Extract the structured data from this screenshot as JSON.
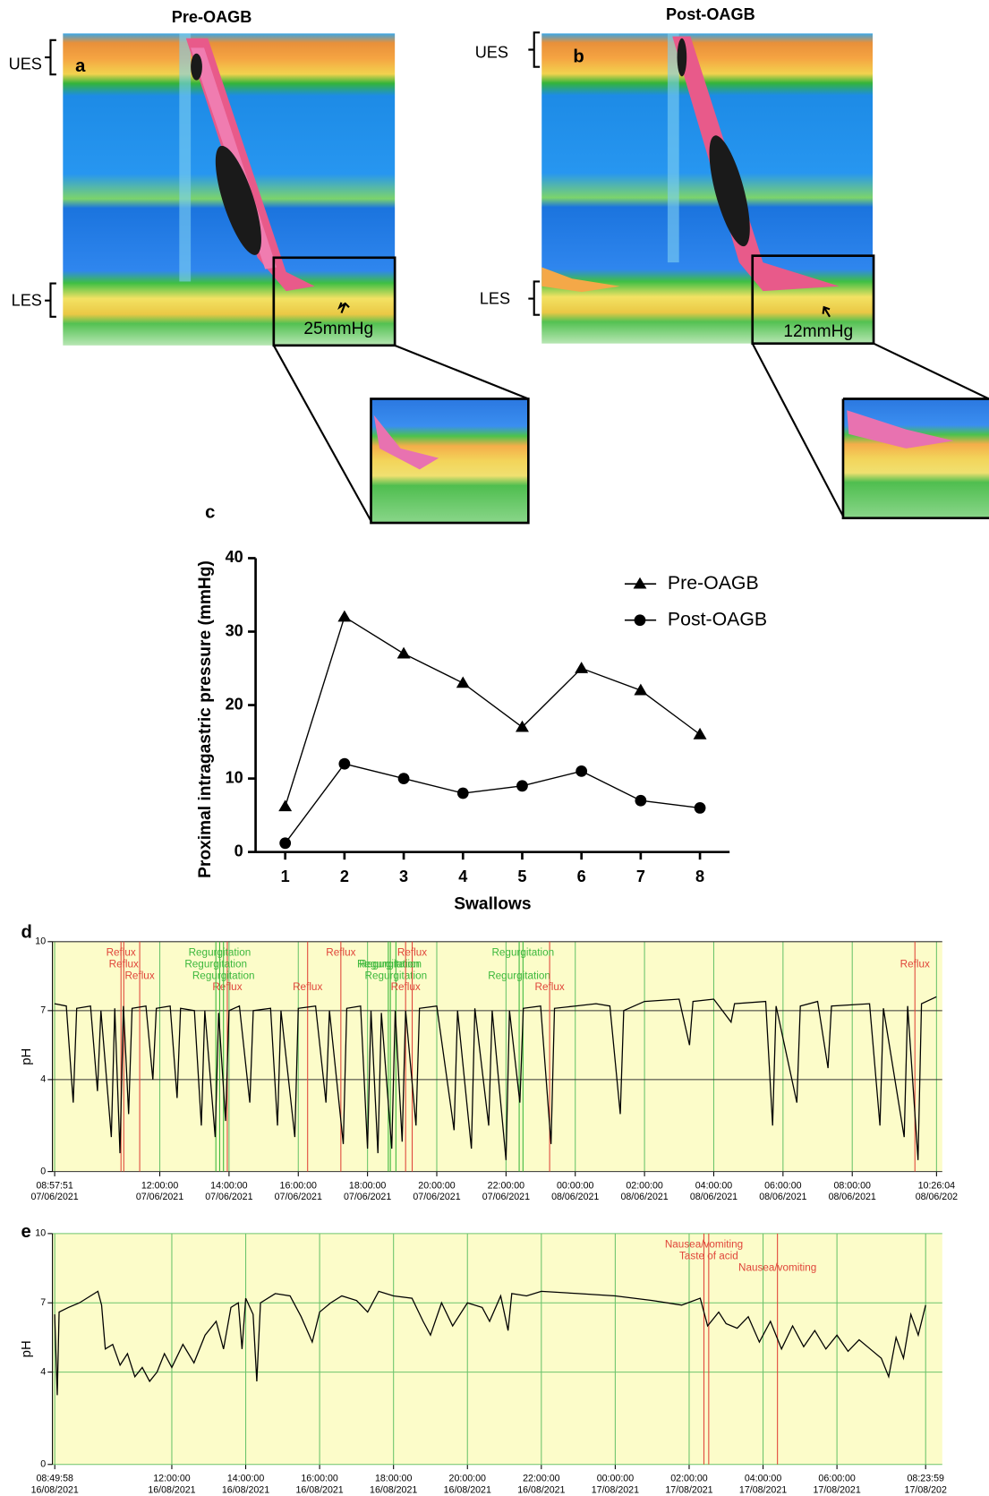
{
  "manometry": [
    {
      "title": "Pre-OAGB",
      "letter": "a",
      "ues": "UES",
      "les": "LES",
      "pressure": "25mmHg"
    },
    {
      "title": "Post-OAGB",
      "letter": "b",
      "ues": "UES",
      "les": "LES",
      "pressure": "12mmHg"
    }
  ],
  "chart_data": [
    {
      "type": "line",
      "panel": "c",
      "xlabel": "Swallows",
      "ylabel": "Proximal intragastric pressure (mmHg)",
      "x": [
        1,
        2,
        3,
        4,
        5,
        6,
        7,
        8
      ],
      "xlim": [
        0.5,
        8.5
      ],
      "xticks": [
        1,
        2,
        3,
        4,
        5,
        6,
        7,
        8
      ],
      "ylim": [
        0,
        40
      ],
      "yticks": [
        0,
        10,
        20,
        30,
        40
      ],
      "series": [
        {
          "name": "Pre-OAGB",
          "color": "#000000",
          "marker": "triangle",
          "values": [
            6.2,
            32,
            27,
            23,
            17,
            25,
            22,
            16
          ]
        },
        {
          "name": "Post-OAGB",
          "color": "#000000",
          "marker": "circle",
          "values": [
            1.2,
            12,
            10,
            8,
            9,
            11,
            7,
            6
          ]
        }
      ]
    },
    {
      "type": "trace",
      "panel": "d",
      "ylabel": "pH",
      "background": "#fcfcc9",
      "grid_color": "#333333",
      "vgrid_color": "#6cc46c",
      "xlim": [
        8.9,
        34.6
      ],
      "ylim": [
        0,
        10
      ],
      "yticks": [
        0,
        4,
        7,
        10
      ],
      "xticks": [
        {
          "value": 8.964,
          "label": "08:57:51",
          "date": "07/06/2021"
        },
        {
          "value": 12,
          "label": "12:00:00",
          "date": "07/06/2021"
        },
        {
          "value": 14,
          "label": "14:00:00",
          "date": "07/06/2021"
        },
        {
          "value": 16,
          "label": "16:00:00",
          "date": "07/06/2021"
        },
        {
          "value": 18,
          "label": "18:00:00",
          "date": "07/06/2021"
        },
        {
          "value": 20,
          "label": "20:00:00",
          "date": "07/06/2021"
        },
        {
          "value": 22,
          "label": "22:00:00",
          "date": "07/06/2021"
        },
        {
          "value": 24,
          "label": "00:00:00",
          "date": "08/06/2021"
        },
        {
          "value": 26,
          "label": "02:00:00",
          "date": "08/06/2021"
        },
        {
          "value": 28,
          "label": "04:00:00",
          "date": "08/06/2021"
        },
        {
          "value": 30,
          "label": "06:00:00",
          "date": "08/06/2021"
        },
        {
          "value": 32,
          "label": "08:00:00",
          "date": "08/06/2021"
        },
        {
          "value": 34.434,
          "label": "10:26:04",
          "date": "08/06/202"
        }
      ],
      "events": [
        {
          "x": 10.88,
          "label": "Reflux",
          "color": "#e0453a"
        },
        {
          "x": 10.96,
          "label": "Reflux",
          "color": "#e0453a"
        },
        {
          "x": 11.42,
          "label": "Reflux",
          "color": "#e0453a"
        },
        {
          "x": 13.95,
          "label": "Reflux",
          "color": "#e0453a"
        },
        {
          "x": 13.73,
          "label": "Regurgitation",
          "color": "#3cb83c"
        },
        {
          "x": 13.62,
          "label": "Regurgitation",
          "color": "#3cb83c"
        },
        {
          "x": 13.84,
          "label": "Regurgitation",
          "color": "#3cb83c"
        },
        {
          "x": 16.27,
          "label": "Reflux",
          "color": "#e0453a"
        },
        {
          "x": 17.23,
          "label": "Reflux",
          "color": "#e0453a"
        },
        {
          "x": 18.66,
          "label": "Regurgitation",
          "color": "#3cb83c"
        },
        {
          "x": 18.82,
          "label": "Regurgitation",
          "color": "#3cb83c"
        },
        {
          "x": 19.1,
          "label": "Reflux",
          "color": "#e0453a"
        },
        {
          "x": 19.29,
          "label": "Reflux",
          "color": "#e0453a"
        },
        {
          "x": 18.6,
          "label": "Regurgitation",
          "color": "#3cb83c"
        },
        {
          "x": 22.38,
          "label": "Regurgitation",
          "color": "#3cb83c"
        },
        {
          "x": 23.26,
          "label": "Reflux",
          "color": "#e0453a"
        },
        {
          "x": 22.49,
          "label": "Regurgitation",
          "color": "#3cb83c"
        },
        {
          "x": 33.81,
          "label": "Reflux",
          "color": "#e0453a"
        }
      ],
      "x": [
        8.96,
        9.3,
        9.5,
        9.6,
        10.0,
        10.2,
        10.3,
        10.6,
        10.7,
        10.85,
        10.95,
        11.1,
        11.2,
        11.6,
        11.8,
        11.9,
        12.3,
        12.5,
        12.6,
        13.0,
        13.2,
        13.3,
        13.6,
        13.7,
        13.9,
        14.0,
        14.3,
        14.6,
        14.7,
        15.2,
        15.4,
        15.5,
        15.9,
        16.0,
        16.5,
        16.8,
        16.9,
        17.3,
        17.4,
        17.8,
        18.0,
        18.1,
        18.3,
        18.4,
        18.7,
        18.8,
        19.0,
        19.1,
        19.4,
        19.5,
        20.0,
        20.5,
        20.6,
        21.0,
        21.1,
        21.5,
        21.6,
        22.0,
        22.1,
        22.4,
        22.5,
        23.0,
        23.3,
        23.4,
        24.0,
        24.6,
        25.0,
        25.3,
        25.4,
        26.0,
        27.0,
        27.3,
        27.4,
        28.0,
        28.5,
        28.6,
        29.5,
        29.7,
        29.8,
        30.4,
        30.5,
        31.0,
        31.3,
        31.4,
        32.5,
        32.8,
        32.9,
        33.5,
        33.6,
        33.9,
        34.0,
        34.43
      ],
      "series": [
        {
          "color": "#000000",
          "values": [
            7.3,
            7.2,
            3.0,
            7.1,
            7.2,
            3.5,
            7.0,
            1.5,
            7.1,
            0.8,
            7.2,
            2.5,
            7.1,
            7.2,
            4.0,
            7.1,
            7.2,
            3.2,
            7.1,
            7.0,
            2.0,
            7.0,
            1.5,
            6.9,
            2.2,
            7.0,
            7.2,
            3.0,
            7.0,
            7.1,
            2.0,
            7.0,
            1.5,
            7.1,
            7.2,
            3.0,
            7.0,
            1.2,
            7.1,
            7.2,
            1.0,
            7.0,
            0.8,
            6.9,
            1.0,
            7.0,
            1.3,
            7.0,
            2.0,
            7.1,
            7.2,
            1.8,
            7.0,
            1.0,
            7.1,
            2.0,
            7.0,
            0.5,
            7.0,
            3.0,
            7.1,
            7.2,
            1.2,
            7.1,
            7.2,
            7.3,
            7.2,
            2.5,
            7.0,
            7.4,
            7.5,
            5.5,
            7.4,
            7.5,
            6.5,
            7.3,
            7.4,
            2.0,
            7.2,
            3.0,
            7.2,
            7.4,
            4.5,
            7.2,
            7.3,
            2.0,
            7.1,
            1.5,
            7.2,
            0.5,
            7.3,
            7.6
          ]
        }
      ]
    },
    {
      "type": "trace",
      "panel": "e",
      "ylabel": "pH",
      "background": "#fcfcc9",
      "grid_color": "#6cc46c",
      "vgrid_color": "#6cc46c",
      "xlim": [
        8.77,
        32.85
      ],
      "ylim": [
        0,
        10
      ],
      "yticks": [
        0,
        4,
        7,
        10
      ],
      "xticks": [
        {
          "value": 8.833,
          "label": "08:49:58",
          "date": "16/08/2021"
        },
        {
          "value": 12,
          "label": "12:00:00",
          "date": "16/08/2021"
        },
        {
          "value": 14,
          "label": "14:00:00",
          "date": "16/08/2021"
        },
        {
          "value": 16,
          "label": "16:00:00",
          "date": "16/08/2021"
        },
        {
          "value": 18,
          "label": "18:00:00",
          "date": "16/08/2021"
        },
        {
          "value": 20,
          "label": "20:00:00",
          "date": "16/08/2021"
        },
        {
          "value": 22,
          "label": "22:00:00",
          "date": "16/08/2021"
        },
        {
          "value": 24,
          "label": "00:00:00",
          "date": "17/08/2021"
        },
        {
          "value": 26,
          "label": "02:00:00",
          "date": "17/08/2021"
        },
        {
          "value": 28,
          "label": "04:00:00",
          "date": "17/08/2021"
        },
        {
          "value": 30,
          "label": "06:00:00",
          "date": "17/08/2021"
        },
        {
          "value": 32.4,
          "label": "08:23:59",
          "date": "17/08/202"
        }
      ],
      "events": [
        {
          "x": 26.4,
          "label": "Nausea/vomiting",
          "color": "#e0453a"
        },
        {
          "x": 26.53,
          "label": "Taste of acid",
          "color": "#e0453a"
        },
        {
          "x": 28.39,
          "label": "Nausea/vomiting",
          "color": "#e0453a"
        }
      ],
      "x": [
        8.83,
        8.9,
        8.95,
        9.2,
        9.5,
        9.8,
        10.0,
        10.1,
        10.2,
        10.4,
        10.6,
        10.8,
        11.0,
        11.2,
        11.4,
        11.6,
        11.8,
        12.0,
        12.3,
        12.6,
        12.9,
        13.2,
        13.4,
        13.6,
        13.8,
        13.9,
        14.0,
        14.2,
        14.3,
        14.4,
        14.8,
        15.2,
        15.5,
        15.8,
        16.0,
        16.3,
        16.6,
        17.0,
        17.3,
        17.6,
        18.0,
        18.5,
        18.8,
        19.0,
        19.3,
        19.6,
        20.0,
        20.4,
        20.6,
        20.9,
        21.1,
        21.2,
        21.6,
        22.0,
        23.0,
        24.0,
        25.0,
        25.8,
        26.3,
        26.5,
        26.8,
        27.0,
        27.3,
        27.6,
        27.9,
        28.2,
        28.5,
        28.8,
        29.1,
        29.4,
        29.7,
        30.0,
        30.3,
        30.6,
        30.9,
        31.2,
        31.4,
        31.6,
        31.8,
        32.0,
        32.2,
        32.4
      ],
      "series": [
        {
          "color": "#000000",
          "values": [
            6.5,
            3.0,
            6.6,
            6.8,
            7.0,
            7.3,
            7.5,
            6.9,
            5.0,
            5.2,
            4.3,
            4.8,
            3.8,
            4.2,
            3.6,
            4.0,
            4.8,
            4.2,
            5.2,
            4.4,
            5.6,
            6.2,
            5.0,
            6.8,
            7.0,
            5.0,
            7.2,
            6.5,
            3.6,
            7.0,
            7.4,
            7.3,
            6.4,
            5.3,
            6.6,
            7.0,
            7.3,
            7.1,
            6.6,
            7.5,
            7.3,
            7.2,
            6.2,
            5.6,
            7.0,
            6.0,
            7.0,
            6.8,
            6.2,
            7.3,
            5.8,
            7.4,
            7.3,
            7.5,
            7.4,
            7.3,
            7.1,
            6.9,
            7.2,
            6.0,
            6.6,
            6.1,
            5.9,
            6.4,
            5.3,
            6.2,
            5.0,
            6.0,
            5.1,
            5.8,
            5.0,
            5.6,
            4.9,
            5.4,
            5.0,
            4.6,
            3.8,
            5.5,
            4.6,
            6.5,
            5.6,
            6.9
          ]
        }
      ]
    }
  ]
}
